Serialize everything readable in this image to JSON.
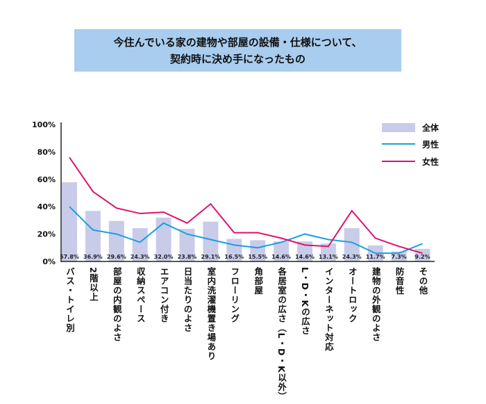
{
  "title": {
    "line1": "今住んでいる家の建物や部屋の設備・仕様について、",
    "line2": "契約時に決め手になったもの"
  },
  "chart_data": {
    "type": "bar",
    "categories": [
      "バス・トイレ別",
      "2階以上",
      "部屋の内観のよさ",
      "収納スペース",
      "エアコン付き",
      "日当たりのよさ",
      "室内洗濯機置き場あり",
      "フローリング",
      "角部屋",
      "各居室の広さ（L・D・K以外）",
      "L・D・Kの広さ",
      "インターネット対応",
      "オートロック",
      "建物の外観のよさ",
      "防音性",
      "その他"
    ],
    "series": [
      {
        "name": "全体",
        "type": "bar",
        "color": "#c8cce9",
        "values": [
          57.8,
          36.9,
          29.6,
          24.3,
          32.0,
          23.8,
          29.1,
          16.5,
          15.5,
          14.6,
          14.6,
          13.1,
          24.3,
          11.7,
          7.3,
          9.2
        ]
      },
      {
        "name": "男性",
        "type": "line",
        "color": "#1a9ee0",
        "values": [
          40,
          23,
          20,
          14,
          28,
          20,
          16,
          12,
          10,
          14,
          20,
          16,
          14,
          6,
          6,
          13
        ]
      },
      {
        "name": "女性",
        "type": "line",
        "color": "#e0106e",
        "values": [
          76,
          51,
          39,
          35,
          36,
          28,
          42,
          21,
          21,
          17,
          12,
          11,
          37,
          17,
          11,
          6
        ]
      }
    ],
    "data_labels": [
      "57.8%",
      "36.9%",
      "29.6%",
      "24.3%",
      "32.0%",
      "23.8%",
      "29.1%",
      "16.5%",
      "15.5%",
      "14.6%",
      "14.6%",
      "13.1%",
      "24.3%",
      "11.7%",
      "7.3%",
      "9.2%"
    ],
    "yticks": [
      "0%",
      "20%",
      "40%",
      "60%",
      "80%",
      "100%"
    ],
    "ylim": [
      0,
      100
    ],
    "grid": false,
    "legend": "top-right"
  }
}
